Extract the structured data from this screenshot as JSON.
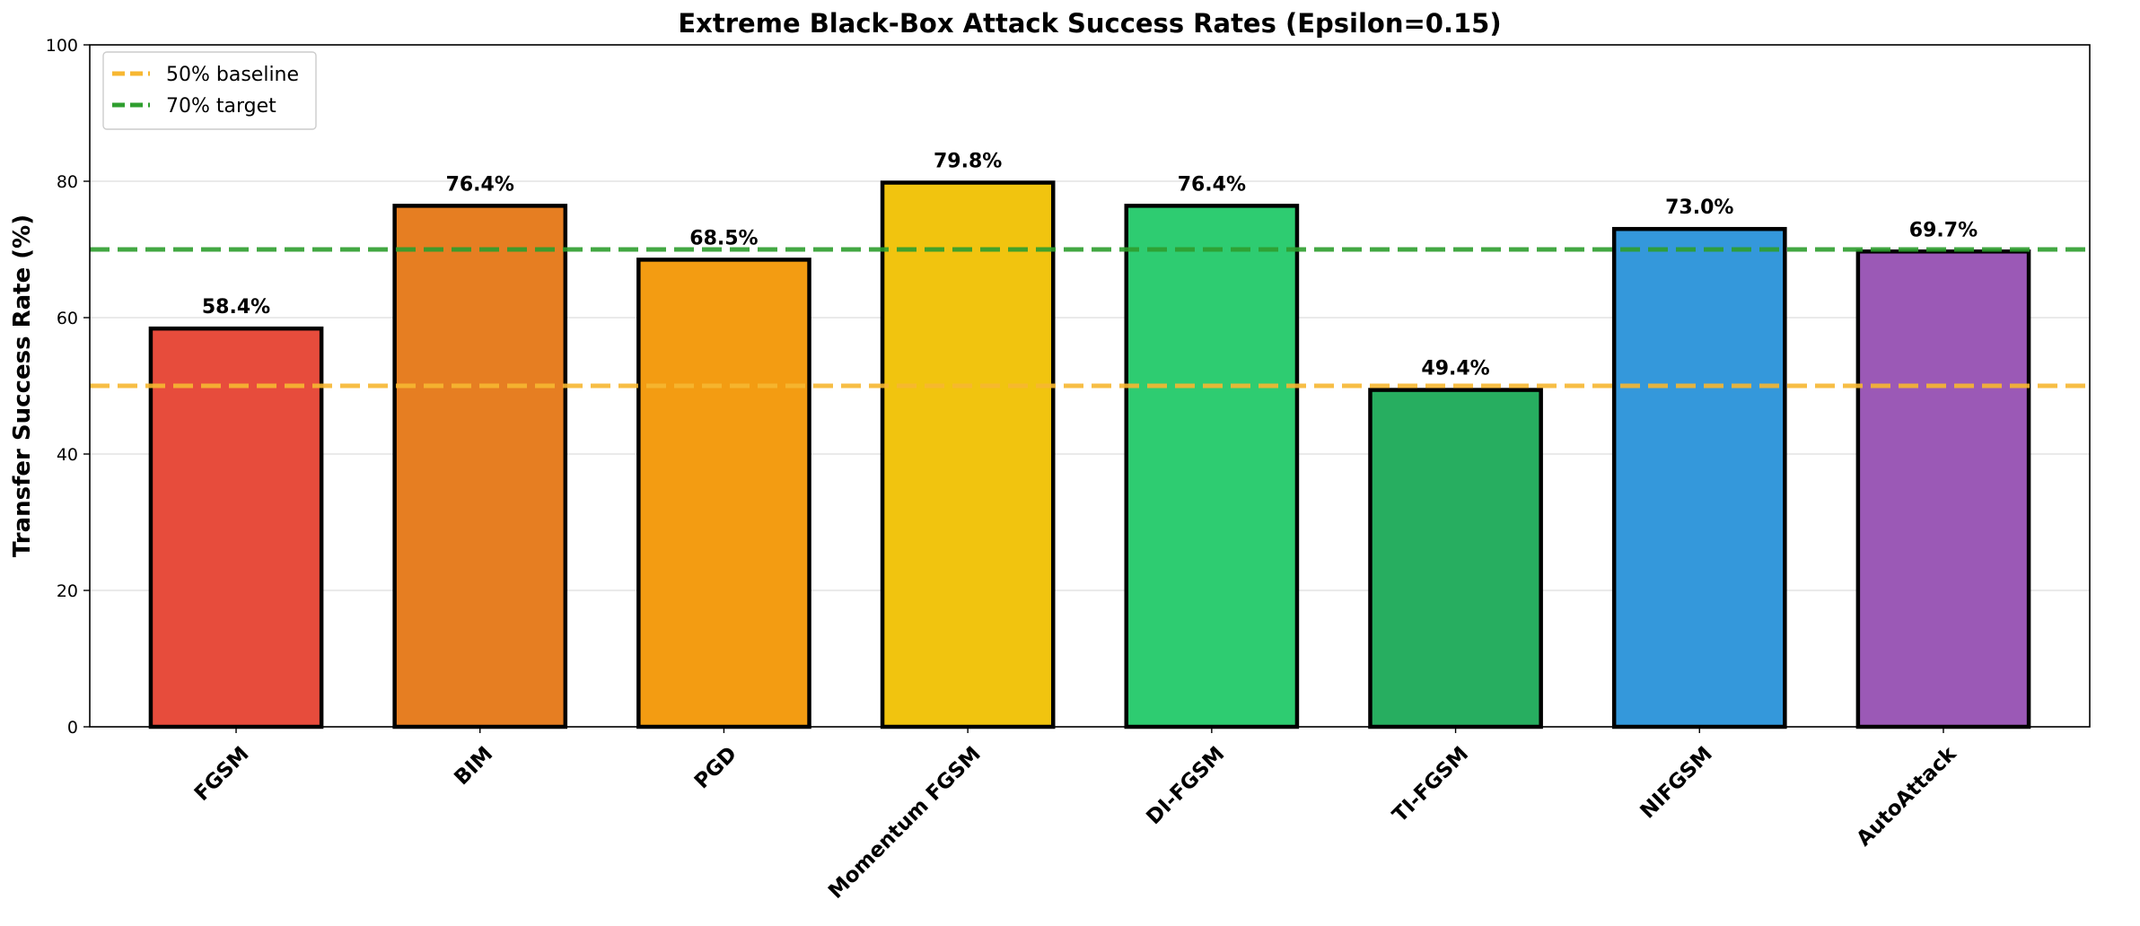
{
  "chart_data": {
    "type": "bar",
    "title": "Extreme Black-Box Attack Success Rates (Epsilon=0.15)",
    "xlabel": "",
    "ylabel": "Transfer Success Rate (%)",
    "ylim": [
      0,
      100
    ],
    "yticks": [
      0,
      20,
      40,
      60,
      80,
      100
    ],
    "grid": "horizontal",
    "legend_position": "top-left",
    "categories": [
      "FGSM",
      "BIM",
      "PGD",
      "Momentum FGSM",
      "DI-FGSM",
      "TI-FGSM",
      "NIFGSM",
      "AutoAttack"
    ],
    "values": [
      58.4,
      76.4,
      68.5,
      79.8,
      76.4,
      49.4,
      73.0,
      69.7
    ],
    "data_labels": [
      "58.4%",
      "76.4%",
      "68.5%",
      "79.8%",
      "76.4%",
      "49.4%",
      "73.0%",
      "69.7%"
    ],
    "colors": [
      "#e74c3c",
      "#e67e22",
      "#f39c12",
      "#f1c40f",
      "#2ecc71",
      "#27ae60",
      "#3498db",
      "#9b59b6"
    ],
    "reference_lines": [
      {
        "label": "50% baseline",
        "y": 50,
        "color": "#f7b731"
      },
      {
        "label": "70% target",
        "y": 70,
        "color": "#2e9e2e"
      }
    ]
  }
}
